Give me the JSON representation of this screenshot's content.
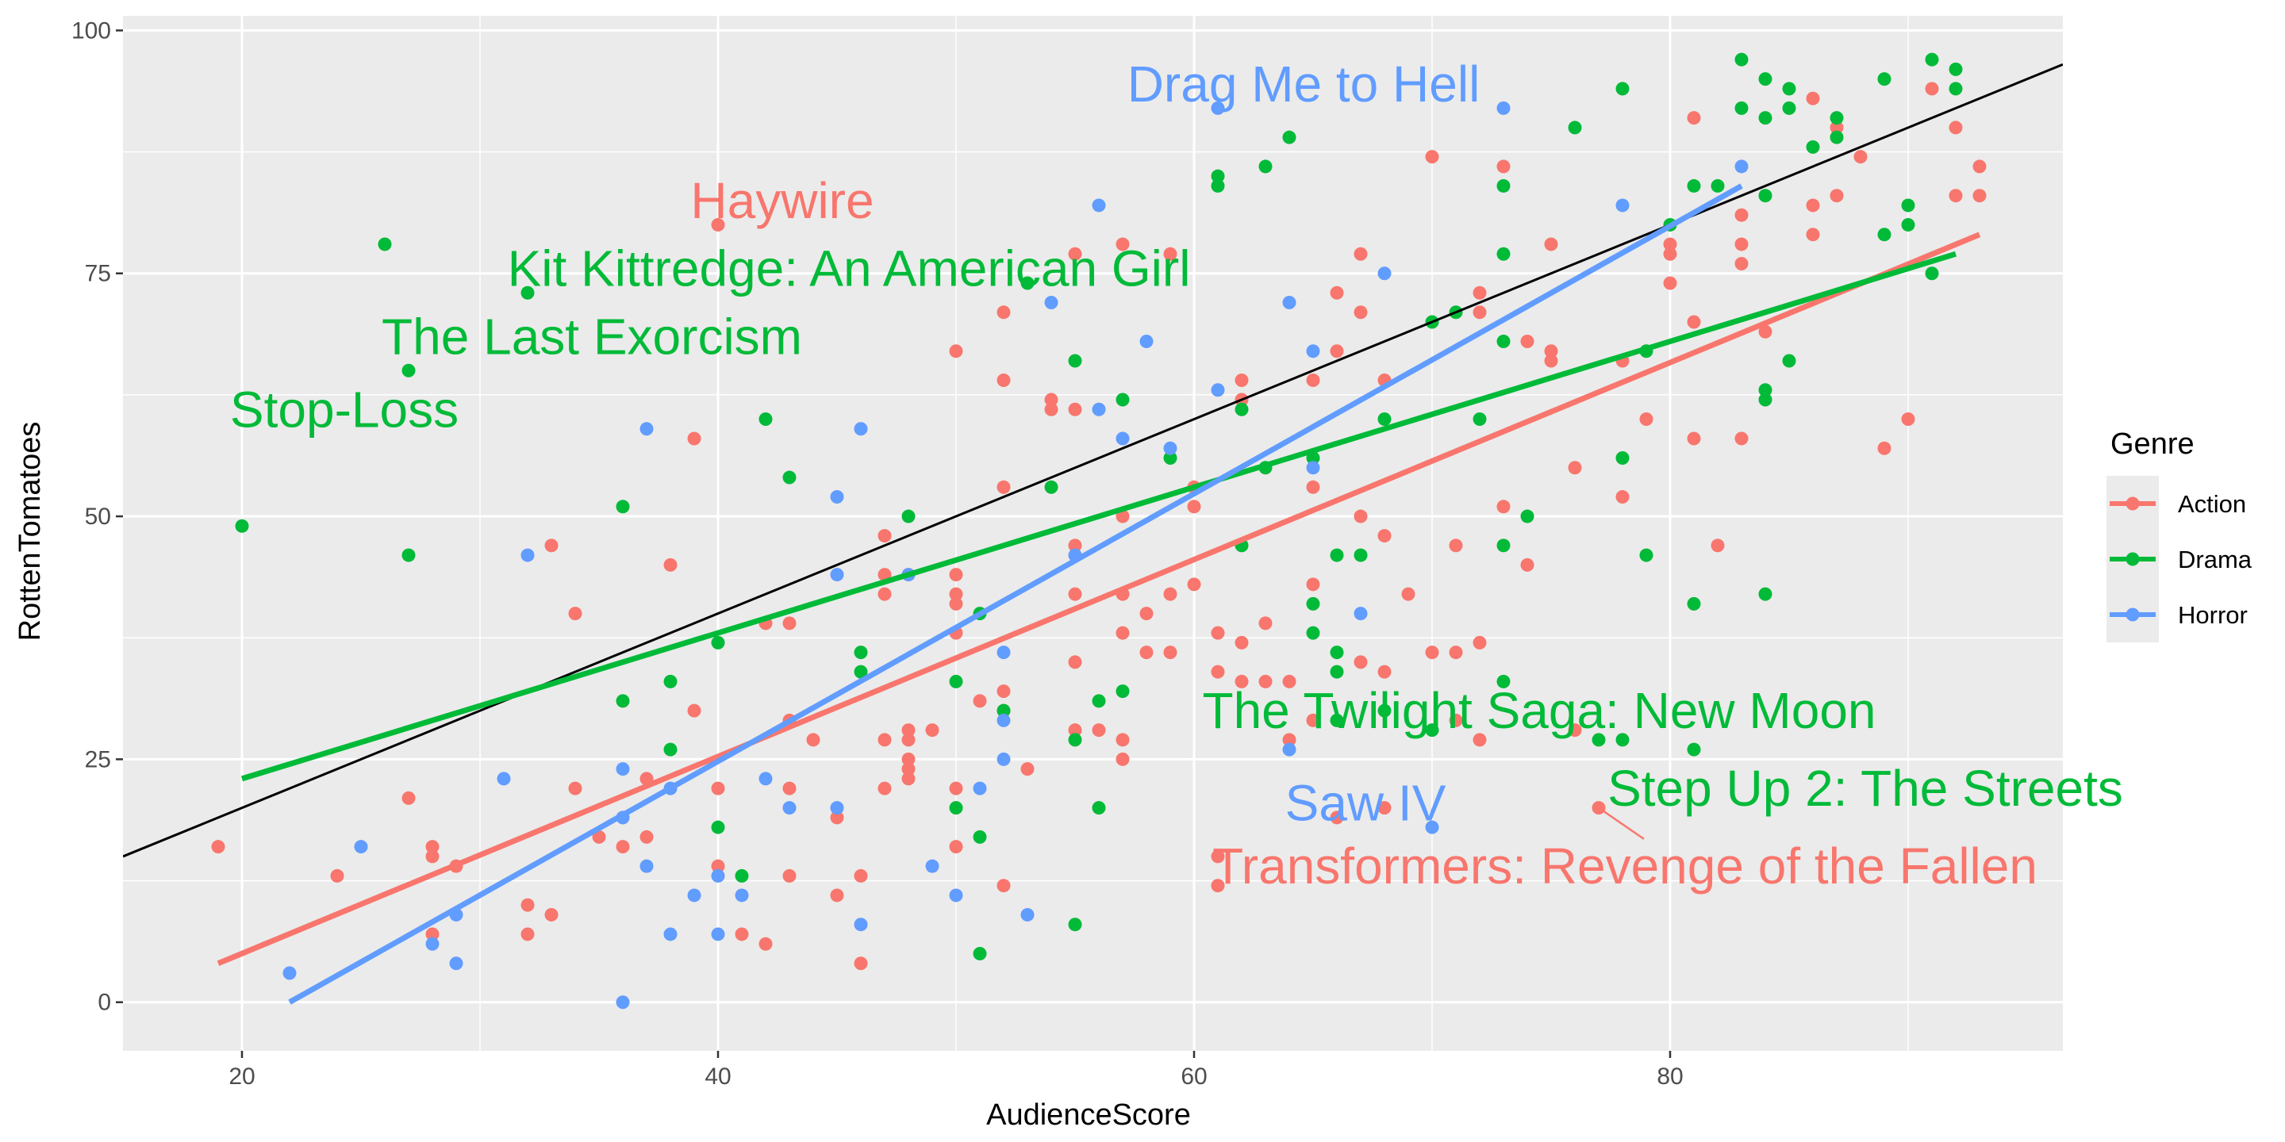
{
  "chart_data": {
    "type": "scatter",
    "title": "",
    "xlabel": "AudienceScore",
    "ylabel": "RottenTomatoes",
    "xlim": [
      15,
      96.5
    ],
    "ylim": [
      -5,
      101.5
    ],
    "xticks": [
      20,
      40,
      60,
      80
    ],
    "yticks": [
      0,
      25,
      50,
      75,
      100
    ],
    "grid": true,
    "legend": {
      "title": "Genre",
      "position": "right",
      "entries": [
        "Action",
        "Drama",
        "Horror"
      ]
    },
    "colors": {
      "Action": "#F8766D",
      "Drama": "#00BA38",
      "Horror": "#619CFF",
      "reference_line": "#000000",
      "panel_background": "#EBEBEB",
      "grid": "#FFFFFF"
    },
    "reference_line": {
      "x": [
        15,
        96.5
      ],
      "y": [
        15,
        96.5
      ]
    },
    "series": [
      {
        "name": "Action",
        "fit": {
          "x": [
            19,
            93
          ],
          "y": [
            4,
            79
          ]
        },
        "points": [
          [
            19,
            16
          ],
          [
            24,
            13
          ],
          [
            27,
            21
          ],
          [
            28,
            16
          ],
          [
            28,
            15
          ],
          [
            28,
            7
          ],
          [
            29,
            14
          ],
          [
            32,
            10
          ],
          [
            32,
            7
          ],
          [
            33,
            47
          ],
          [
            33,
            9
          ],
          [
            34,
            40
          ],
          [
            34,
            22
          ],
          [
            35,
            17
          ],
          [
            36,
            19
          ],
          [
            36,
            16
          ],
          [
            37,
            17
          ],
          [
            37,
            23
          ],
          [
            38,
            45
          ],
          [
            39,
            58
          ],
          [
            39,
            30
          ],
          [
            40,
            80
          ],
          [
            40,
            22
          ],
          [
            40,
            14
          ],
          [
            41,
            7
          ],
          [
            42,
            39
          ],
          [
            42,
            6
          ],
          [
            43,
            39
          ],
          [
            43,
            29
          ],
          [
            43,
            22
          ],
          [
            43,
            13
          ],
          [
            44,
            27
          ],
          [
            45,
            19
          ],
          [
            45,
            11
          ],
          [
            46,
            13
          ],
          [
            46,
            4
          ],
          [
            47,
            48
          ],
          [
            47,
            44
          ],
          [
            47,
            42
          ],
          [
            47,
            27
          ],
          [
            47,
            22
          ],
          [
            48,
            44
          ],
          [
            48,
            28
          ],
          [
            48,
            27
          ],
          [
            48,
            25
          ],
          [
            48,
            24
          ],
          [
            48,
            23
          ],
          [
            49,
            28
          ],
          [
            50,
            67
          ],
          [
            50,
            44
          ],
          [
            50,
            42
          ],
          [
            50,
            41
          ],
          [
            50,
            38
          ],
          [
            50,
            22
          ],
          [
            50,
            16
          ],
          [
            51,
            31
          ],
          [
            52,
            71
          ],
          [
            52,
            64
          ],
          [
            52,
            53
          ],
          [
            52,
            32
          ],
          [
            52,
            30
          ],
          [
            52,
            12
          ],
          [
            53,
            24
          ],
          [
            54,
            62
          ],
          [
            54,
            61
          ],
          [
            55,
            77
          ],
          [
            55,
            61
          ],
          [
            55,
            47
          ],
          [
            55,
            42
          ],
          [
            55,
            35
          ],
          [
            55,
            28
          ],
          [
            56,
            28
          ],
          [
            57,
            78
          ],
          [
            57,
            50
          ],
          [
            57,
            42
          ],
          [
            57,
            38
          ],
          [
            57,
            27
          ],
          [
            57,
            25
          ],
          [
            58,
            40
          ],
          [
            58,
            36
          ],
          [
            59,
            77
          ],
          [
            59,
            42
          ],
          [
            59,
            36
          ],
          [
            60,
            53
          ],
          [
            60,
            51
          ],
          [
            60,
            43
          ],
          [
            61,
            38
          ],
          [
            61,
            34
          ],
          [
            61,
            15
          ],
          [
            61,
            12
          ],
          [
            62,
            64
          ],
          [
            62,
            62
          ],
          [
            62,
            37
          ],
          [
            62,
            33
          ],
          [
            63,
            39
          ],
          [
            63,
            33
          ],
          [
            64,
            33
          ],
          [
            64,
            27
          ],
          [
            65,
            64
          ],
          [
            65,
            53
          ],
          [
            65,
            43
          ],
          [
            65,
            29
          ],
          [
            66,
            73
          ],
          [
            66,
            67
          ],
          [
            66,
            19
          ],
          [
            67,
            77
          ],
          [
            67,
            71
          ],
          [
            67,
            50
          ],
          [
            67,
            35
          ],
          [
            68,
            64
          ],
          [
            68,
            48
          ],
          [
            68,
            34
          ],
          [
            68,
            20
          ],
          [
            69,
            42
          ],
          [
            70,
            87
          ],
          [
            70,
            36
          ],
          [
            71,
            47
          ],
          [
            71,
            36
          ],
          [
            71,
            29
          ],
          [
            72,
            73
          ],
          [
            72,
            71
          ],
          [
            72,
            37
          ],
          [
            72,
            27
          ],
          [
            73,
            86
          ],
          [
            73,
            51
          ],
          [
            74,
            68
          ],
          [
            74,
            45
          ],
          [
            75,
            78
          ],
          [
            75,
            67
          ],
          [
            75,
            66
          ],
          [
            76,
            55
          ],
          [
            76,
            28
          ],
          [
            77,
            20
          ],
          [
            78,
            52
          ],
          [
            78,
            66
          ],
          [
            79,
            60
          ],
          [
            80,
            78
          ],
          [
            80,
            77
          ],
          [
            80,
            74
          ],
          [
            81,
            91
          ],
          [
            81,
            70
          ],
          [
            81,
            58
          ],
          [
            82,
            47
          ],
          [
            83,
            81
          ],
          [
            83,
            78
          ],
          [
            83,
            76
          ],
          [
            83,
            58
          ],
          [
            84,
            69
          ],
          [
            86,
            93
          ],
          [
            86,
            82
          ],
          [
            86,
            79
          ],
          [
            87,
            90
          ],
          [
            87,
            83
          ],
          [
            88,
            87
          ],
          [
            89,
            57
          ],
          [
            90,
            60
          ],
          [
            91,
            94
          ],
          [
            92,
            90
          ],
          [
            92,
            83
          ],
          [
            93,
            86
          ],
          [
            93,
            83
          ]
        ]
      },
      {
        "name": "Drama",
        "fit": {
          "x": [
            20,
            92
          ],
          "y": [
            23,
            77
          ]
        },
        "points": [
          [
            20,
            49
          ],
          [
            26,
            78
          ],
          [
            27,
            65
          ],
          [
            27,
            46
          ],
          [
            32,
            73
          ],
          [
            36,
            51
          ],
          [
            36,
            31
          ],
          [
            38,
            33
          ],
          [
            38,
            26
          ],
          [
            40,
            37
          ],
          [
            40,
            18
          ],
          [
            41,
            13
          ],
          [
            42,
            60
          ],
          [
            43,
            54
          ],
          [
            46,
            36
          ],
          [
            46,
            34
          ],
          [
            48,
            50
          ],
          [
            50,
            33
          ],
          [
            50,
            20
          ],
          [
            51,
            40
          ],
          [
            51,
            17
          ],
          [
            51,
            5
          ],
          [
            52,
            30
          ],
          [
            53,
            74
          ],
          [
            54,
            53
          ],
          [
            55,
            66
          ],
          [
            55,
            27
          ],
          [
            55,
            8
          ],
          [
            56,
            31
          ],
          [
            56,
            20
          ],
          [
            57,
            62
          ],
          [
            57,
            32
          ],
          [
            59,
            56
          ],
          [
            61,
            85
          ],
          [
            61,
            84
          ],
          [
            62,
            61
          ],
          [
            62,
            47
          ],
          [
            63,
            55
          ],
          [
            63,
            86
          ],
          [
            64,
            89
          ],
          [
            65,
            56
          ],
          [
            65,
            41
          ],
          [
            65,
            38
          ],
          [
            66,
            46
          ],
          [
            66,
            36
          ],
          [
            66,
            34
          ],
          [
            66,
            29
          ],
          [
            67,
            46
          ],
          [
            68,
            60
          ],
          [
            68,
            30
          ],
          [
            70,
            70
          ],
          [
            70,
            28
          ],
          [
            71,
            71
          ],
          [
            72,
            60
          ],
          [
            73,
            84
          ],
          [
            73,
            77
          ],
          [
            73,
            68
          ],
          [
            73,
            47
          ],
          [
            73,
            33
          ],
          [
            74,
            50
          ],
          [
            76,
            90
          ],
          [
            77,
            27
          ],
          [
            78,
            94
          ],
          [
            78,
            56
          ],
          [
            78,
            27
          ],
          [
            79,
            67
          ],
          [
            79,
            46
          ],
          [
            80,
            80
          ],
          [
            81,
            84
          ],
          [
            81,
            41
          ],
          [
            81,
            26
          ],
          [
            82,
            84
          ],
          [
            83,
            97
          ],
          [
            83,
            92
          ],
          [
            84,
            95
          ],
          [
            84,
            91
          ],
          [
            84,
            83
          ],
          [
            84,
            63
          ],
          [
            84,
            62
          ],
          [
            84,
            42
          ],
          [
            85,
            94
          ],
          [
            85,
            92
          ],
          [
            85,
            66
          ],
          [
            86,
            88
          ],
          [
            87,
            91
          ],
          [
            87,
            89
          ],
          [
            89,
            95
          ],
          [
            89,
            79
          ],
          [
            90,
            82
          ],
          [
            90,
            80
          ],
          [
            91,
            97
          ],
          [
            91,
            75
          ],
          [
            92,
            96
          ],
          [
            92,
            94
          ]
        ]
      },
      {
        "name": "Horror",
        "fit": {
          "x": [
            22,
            83
          ],
          "y": [
            0,
            84
          ]
        },
        "points": [
          [
            22,
            3
          ],
          [
            25,
            16
          ],
          [
            28,
            6
          ],
          [
            29,
            9
          ],
          [
            29,
            4
          ],
          [
            31,
            23
          ],
          [
            32,
            46
          ],
          [
            36,
            24
          ],
          [
            36,
            19
          ],
          [
            36,
            0
          ],
          [
            37,
            59
          ],
          [
            37,
            14
          ],
          [
            38,
            22
          ],
          [
            38,
            7
          ],
          [
            39,
            11
          ],
          [
            40,
            13
          ],
          [
            40,
            7
          ],
          [
            41,
            11
          ],
          [
            42,
            23
          ],
          [
            43,
            20
          ],
          [
            45,
            52
          ],
          [
            45,
            44
          ],
          [
            45,
            20
          ],
          [
            46,
            59
          ],
          [
            46,
            8
          ],
          [
            48,
            44
          ],
          [
            49,
            14
          ],
          [
            50,
            11
          ],
          [
            51,
            22
          ],
          [
            52,
            36
          ],
          [
            52,
            29
          ],
          [
            52,
            25
          ],
          [
            53,
            9
          ],
          [
            54,
            72
          ],
          [
            55,
            46
          ],
          [
            56,
            82
          ],
          [
            56,
            61
          ],
          [
            57,
            58
          ],
          [
            58,
            68
          ],
          [
            59,
            57
          ],
          [
            61,
            92
          ],
          [
            61,
            63
          ],
          [
            64,
            72
          ],
          [
            64,
            26
          ],
          [
            65,
            67
          ],
          [
            65,
            55
          ],
          [
            67,
            40
          ],
          [
            68,
            75
          ],
          [
            70,
            18
          ],
          [
            73,
            92
          ],
          [
            78,
            82
          ],
          [
            83,
            86
          ]
        ]
      }
    ],
    "annotations": [
      {
        "text": "Drag Me to Hell",
        "genre": "Horror",
        "x": 64.6,
        "y": 94.5
      },
      {
        "text": "Haywire",
        "genre": "Action",
        "x": 42.7,
        "y": 82.5
      },
      {
        "text": "Kit Kittredge: An American Girl",
        "genre": "Drama",
        "x": 45.5,
        "y": 75.5
      },
      {
        "text": "The Last Exorcism",
        "genre": "Drama",
        "x": 34.7,
        "y": 68.5
      },
      {
        "text": "Stop-Loss",
        "genre": "Drama",
        "x": 24.3,
        "y": 61
      },
      {
        "text": "The Twilight Saga: New Moon",
        "genre": "Drama",
        "x": 74.5,
        "y": 30
      },
      {
        "text": "Saw IV",
        "genre": "Horror",
        "x": 67.2,
        "y": 20.5
      },
      {
        "text": "Step Up 2: The Streets",
        "genre": "Drama",
        "x": 88.2,
        "y": 22
      },
      {
        "text": "Transformers: Revenge of the Fallen",
        "genre": "Action",
        "x": 78.1,
        "y": 14
      }
    ]
  }
}
